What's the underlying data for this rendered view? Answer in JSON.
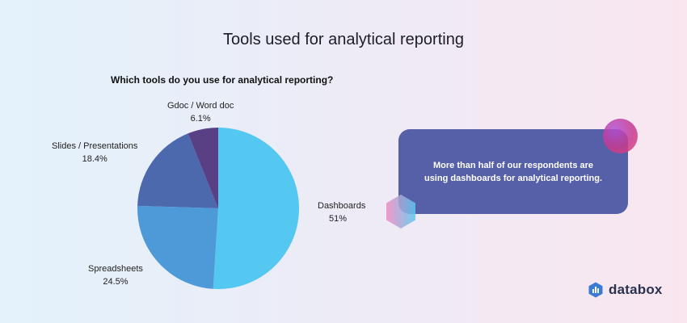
{
  "header": {
    "title": "Tools used for analytical reporting"
  },
  "chart_data": {
    "type": "pie",
    "title": "Which tools do you use for analytical reporting?",
    "slices": [
      {
        "label": "Dashboards",
        "value": 51,
        "display": "51%",
        "color": "#55c8f2"
      },
      {
        "label": "Spreadsheets",
        "value": 24.5,
        "display": "24.5%",
        "color": "#4e9ad9"
      },
      {
        "label": "Slides / Presentations",
        "value": 18.4,
        "display": "18.4%",
        "color": "#4d69ae"
      },
      {
        "label": "Gdoc / Word doc",
        "value": 6.1,
        "display": "6.1%",
        "color": "#593f83"
      }
    ],
    "start": "12 o'clock",
    "direction": "clockwise"
  },
  "callout": {
    "text": "More than half of our respondents are using dashboards for analytical reporting."
  },
  "brand": {
    "name": "databox"
  }
}
